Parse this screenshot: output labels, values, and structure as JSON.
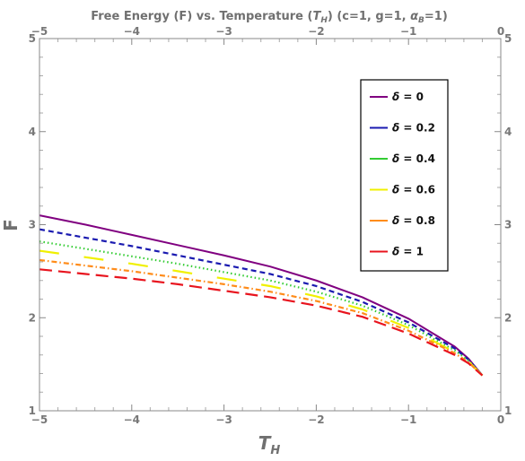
{
  "chart_data": {
    "type": "line",
    "title_parts": {
      "prefix": "Free Energy (F) vs. Temperature (",
      "T": "T",
      "T_sub": "H",
      "middle": ") (c=1, g=1, ",
      "alpha": "α",
      "alpha_sub": "B",
      "suffix": "=1)"
    },
    "xlabel": "T",
    "xlabel_sub": "H",
    "ylabel": "F",
    "xlim": [
      -5,
      0
    ],
    "ylim": [
      1,
      5
    ],
    "x_ticks": [
      -5,
      -4,
      -3,
      -2,
      -1,
      0
    ],
    "x_tick_labels": [
      "−5",
      "−4",
      "−3",
      "−2",
      "−1",
      "0"
    ],
    "y_ticks": [
      1,
      2,
      3,
      4,
      5
    ],
    "y_tick_labels": [
      "1",
      "2",
      "3",
      "4",
      "5"
    ],
    "legend_position": "top-right",
    "legend_symbol": "δ",
    "series": [
      {
        "name": "δ = 0",
        "color": "#800080",
        "dash": "solid",
        "x": [
          -5,
          -4.5,
          -4,
          -3.5,
          -3,
          -2.5,
          -2,
          -1.5,
          -1,
          -0.5,
          -0.35,
          -0.2
        ],
        "y": [
          3.1,
          3.0,
          2.89,
          2.78,
          2.67,
          2.55,
          2.4,
          2.22,
          1.99,
          1.69,
          1.56,
          1.38
        ]
      },
      {
        "name": "δ = 0.2",
        "color": "#1a1ab0",
        "dash": "dashed",
        "x": [
          -5,
          -4.5,
          -4,
          -3.5,
          -3,
          -2.5,
          -2,
          -1.5,
          -1,
          -0.5,
          -0.35,
          -0.2
        ],
        "y": [
          2.95,
          2.86,
          2.77,
          2.67,
          2.57,
          2.47,
          2.34,
          2.17,
          1.95,
          1.67,
          1.55,
          1.38
        ]
      },
      {
        "name": "δ = 0.4",
        "color": "#33cc33",
        "dash": "dotted",
        "x": [
          -5,
          -4.5,
          -4,
          -3.5,
          -3,
          -2.5,
          -2,
          -1.5,
          -1,
          -0.5,
          -0.35,
          -0.2
        ],
        "y": [
          2.82,
          2.74,
          2.66,
          2.58,
          2.49,
          2.4,
          2.28,
          2.13,
          1.92,
          1.65,
          1.54,
          1.38
        ]
      },
      {
        "name": "δ = 0.6",
        "color": "#f0f000",
        "dash": "longdash",
        "x": [
          -5,
          -4.5,
          -4,
          -3.5,
          -3,
          -2.5,
          -2,
          -1.5,
          -1,
          -0.5,
          -0.35,
          -0.2
        ],
        "y": [
          2.72,
          2.65,
          2.58,
          2.5,
          2.42,
          2.34,
          2.23,
          2.09,
          1.89,
          1.63,
          1.53,
          1.38
        ]
      },
      {
        "name": "δ = 0.8",
        "color": "#ff8c1a",
        "dash": "dotdash",
        "x": [
          -5,
          -4.5,
          -4,
          -3.5,
          -3,
          -2.5,
          -2,
          -1.5,
          -1,
          -0.5,
          -0.35,
          -0.2
        ],
        "y": [
          2.62,
          2.56,
          2.5,
          2.43,
          2.36,
          2.28,
          2.18,
          2.05,
          1.86,
          1.62,
          1.52,
          1.38
        ]
      },
      {
        "name": "δ = 1",
        "color": "#e8141e",
        "dash": "bigdash",
        "x": [
          -5,
          -4.5,
          -4,
          -3.5,
          -3,
          -2.5,
          -2,
          -1.5,
          -1,
          -0.5,
          -0.35,
          -0.2
        ],
        "y": [
          2.52,
          2.47,
          2.42,
          2.36,
          2.29,
          2.22,
          2.13,
          2.01,
          1.83,
          1.6,
          1.51,
          1.38
        ]
      }
    ]
  }
}
